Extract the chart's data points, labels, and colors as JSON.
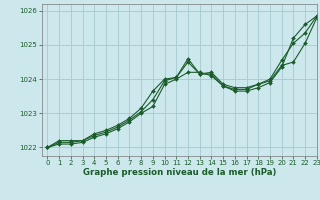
{
  "title": "Graphe pression niveau de la mer (hPa)",
  "background_color": "#cde8ec",
  "grid_color": "#aacdd4",
  "line_color": "#1a5c2a",
  "xlim": [
    -0.5,
    23
  ],
  "ylim": [
    1021.75,
    1026.2
  ],
  "yticks": [
    1022,
    1023,
    1024,
    1025,
    1026
  ],
  "xticks": [
    0,
    1,
    2,
    3,
    4,
    5,
    6,
    7,
    8,
    9,
    10,
    11,
    12,
    13,
    14,
    15,
    16,
    17,
    18,
    19,
    20,
    21,
    22,
    23
  ],
  "series": [
    [
      1022.0,
      1022.2,
      1022.2,
      1022.2,
      1022.4,
      1022.5,
      1022.65,
      1022.85,
      1023.15,
      1023.65,
      1024.0,
      1024.05,
      1024.5,
      1024.15,
      1024.2,
      1023.85,
      1023.75,
      1023.75,
      1023.85,
      1024.0,
      1024.55,
      1025.05,
      1025.35,
      1025.85
    ],
    [
      1022.0,
      1022.15,
      1022.15,
      1022.2,
      1022.35,
      1022.45,
      1022.6,
      1022.8,
      1023.05,
      1023.4,
      1023.95,
      1024.05,
      1024.6,
      1024.15,
      1024.15,
      1023.8,
      1023.7,
      1023.7,
      1023.85,
      1023.95,
      1024.4,
      1024.5,
      1025.05,
      1025.8
    ],
    [
      1022.0,
      1022.1,
      1022.1,
      1022.15,
      1022.3,
      1022.4,
      1022.55,
      1022.75,
      1023.0,
      1023.2,
      1023.85,
      1024.0,
      1024.2,
      1024.2,
      1024.1,
      1023.8,
      1023.65,
      1023.65,
      1023.75,
      1023.9,
      1024.35,
      1025.2,
      1025.6,
      1025.85
    ]
  ]
}
